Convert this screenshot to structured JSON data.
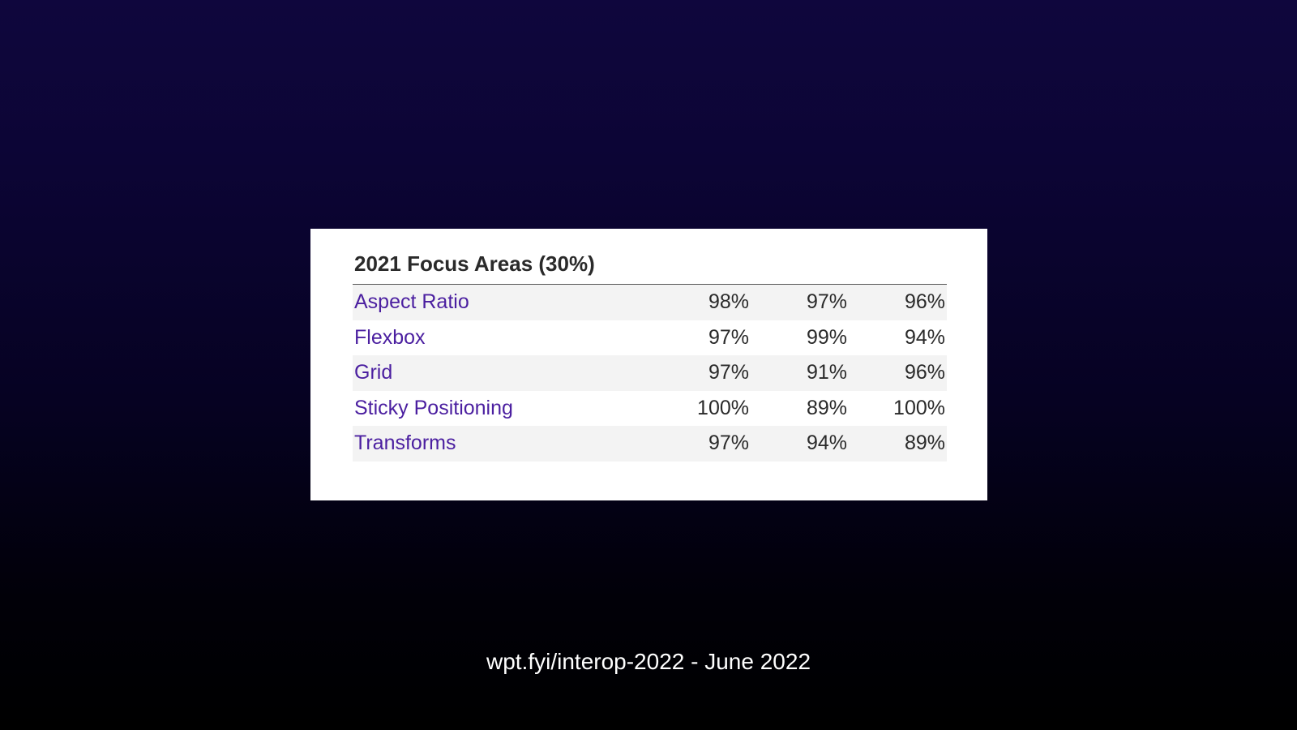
{
  "card": {
    "title": "2021 Focus Areas (30%)",
    "rows": [
      {
        "label": "Aspect Ratio",
        "values": [
          "98%",
          "97%",
          "96%"
        ]
      },
      {
        "label": "Flexbox",
        "values": [
          "97%",
          "99%",
          "94%"
        ]
      },
      {
        "label": "Grid",
        "values": [
          "97%",
          "91%",
          "96%"
        ]
      },
      {
        "label": "Sticky Positioning",
        "values": [
          "100%",
          "89%",
          "100%"
        ]
      },
      {
        "label": "Transforms",
        "values": [
          "97%",
          "94%",
          "89%"
        ]
      }
    ]
  },
  "footer": {
    "caption": "wpt.fyi/interop-2022 - June 2022"
  },
  "colors": {
    "link": "#4b1fa0",
    "text": "#2a2a2a",
    "row_shade": "#f3f3f3",
    "background_top": "#0f063d",
    "background_bottom": "#000000"
  }
}
